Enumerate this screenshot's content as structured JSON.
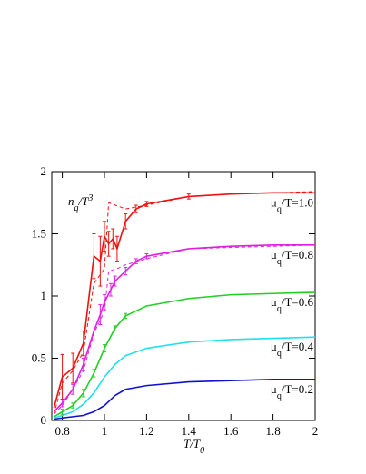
{
  "chart_data": {
    "type": "line",
    "y_label": [
      "n",
      "q",
      "/T",
      "3"
    ],
    "x_label": [
      "T/T",
      "0"
    ],
    "xlim": [
      0.75,
      2
    ],
    "ylim": [
      0,
      2
    ],
    "xticks": [
      0.8,
      1,
      1.2,
      1.4,
      1.6,
      1.8,
      2
    ],
    "yticks": [
      0,
      0.5,
      1,
      1.5,
      2
    ],
    "series": [
      {
        "label": [
          "μ",
          "q",
          "/T=0.2"
        ],
        "color": "#1010d0",
        "dashed": false,
        "x": [
          0.76,
          0.8,
          0.9,
          0.95,
          1.0,
          1.05,
          1.1,
          1.2,
          1.4,
          1.6,
          1.8,
          2.0
        ],
        "values": [
          0.01,
          0.02,
          0.04,
          0.07,
          0.12,
          0.2,
          0.25,
          0.28,
          0.31,
          0.32,
          0.33,
          0.33
        ]
      },
      {
        "label": [
          "μ",
          "q",
          "/T=0.4"
        ],
        "color": "#20e0f0",
        "dashed": false,
        "x": [
          0.76,
          0.8,
          0.85,
          0.9,
          0.95,
          1.0,
          1.05,
          1.1,
          1.2,
          1.4,
          1.6,
          1.8,
          2.0
        ],
        "values": [
          0.02,
          0.04,
          0.07,
          0.13,
          0.22,
          0.35,
          0.45,
          0.52,
          0.58,
          0.63,
          0.65,
          0.66,
          0.67
        ]
      },
      {
        "label": [
          "μ",
          "q",
          "/T=0.6"
        ],
        "color": "#20d020",
        "dashed": false,
        "x": [
          0.76,
          0.8,
          0.85,
          0.9,
          0.95,
          1.0,
          1.05,
          1.1,
          1.2,
          1.4,
          1.6,
          1.8,
          2.0
        ],
        "values": [
          0.03,
          0.07,
          0.12,
          0.22,
          0.38,
          0.58,
          0.74,
          0.84,
          0.92,
          0.98,
          1.01,
          1.02,
          1.03
        ],
        "errors": [
          null,
          0.02,
          0.02,
          0.03,
          0.03,
          0.03,
          0.02,
          0.02,
          null,
          null,
          null,
          null,
          null
        ]
      },
      {
        "label": [
          "μ",
          "q",
          "/T=0.8"
        ],
        "color": "#e020e0",
        "dashed": false,
        "x": [
          0.76,
          0.8,
          0.85,
          0.9,
          0.95,
          0.98,
          1.0,
          1.03,
          1.05,
          1.1,
          1.15,
          1.2,
          1.4,
          1.6,
          1.8,
          2.0
        ],
        "values": [
          0.07,
          0.14,
          0.25,
          0.45,
          0.72,
          0.85,
          0.95,
          1.05,
          1.12,
          1.2,
          1.28,
          1.32,
          1.38,
          1.4,
          1.41,
          1.41
        ],
        "errors": [
          null,
          0.03,
          0.04,
          0.05,
          0.08,
          0.08,
          0.06,
          0.05,
          0.04,
          0.03,
          0.02,
          0.02,
          null,
          null,
          null,
          null
        ]
      },
      {
        "label": [
          "μ",
          "q",
          "/T=1.0"
        ],
        "color": "#f01010",
        "dashed": false,
        "x": [
          0.76,
          0.8,
          0.85,
          0.9,
          0.95,
          0.98,
          1.0,
          1.02,
          1.04,
          1.06,
          1.1,
          1.15,
          1.2,
          1.4,
          1.6,
          1.8,
          2.0
        ],
        "values": [
          0.1,
          0.35,
          0.42,
          0.62,
          1.32,
          1.28,
          1.48,
          1.42,
          1.46,
          1.38,
          1.6,
          1.7,
          1.74,
          1.8,
          1.82,
          1.83,
          1.83
        ],
        "errors": [
          null,
          0.18,
          0.12,
          0.1,
          0.18,
          0.2,
          0.12,
          0.1,
          0.08,
          0.1,
          0.06,
          0.03,
          0.02,
          0.02,
          null,
          null,
          null
        ]
      },
      {
        "color": "#e020e0",
        "dashed": true,
        "x": [
          0.76,
          0.8,
          0.85,
          0.9,
          0.95,
          1.0,
          1.02,
          1.06,
          1.1,
          1.2,
          1.4,
          2.0
        ],
        "values": [
          0.05,
          0.12,
          0.25,
          0.4,
          0.7,
          0.88,
          1.2,
          1.22,
          1.25,
          1.3,
          1.38,
          1.41
        ]
      },
      {
        "color": "#f01010",
        "dashed": true,
        "x": [
          0.76,
          0.8,
          0.85,
          0.9,
          0.95,
          1.0,
          1.02,
          1.1,
          1.2,
          1.4,
          1.6,
          2.0
        ],
        "values": [
          0.05,
          0.3,
          0.4,
          0.55,
          1.1,
          1.22,
          1.75,
          1.7,
          1.73,
          1.8,
          1.82,
          1.84
        ]
      }
    ]
  }
}
